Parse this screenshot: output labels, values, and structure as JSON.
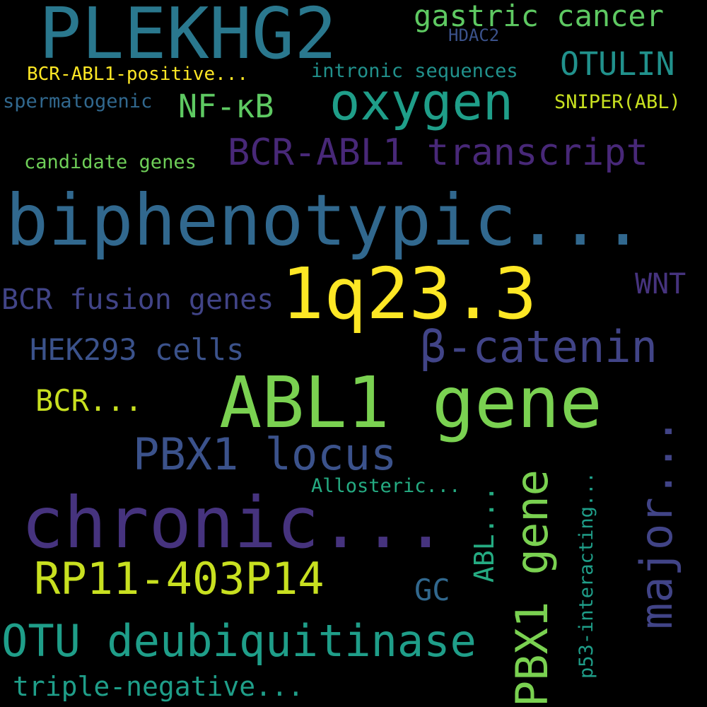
{
  "words": {
    "plekhg2": {
      "text": "PLEKHG2",
      "color": "#2a788e"
    },
    "gastric": {
      "text": "gastric cancer",
      "color": "#5ec962"
    },
    "hdac2": {
      "text": "HDAC2",
      "color": "#3b528b"
    },
    "otulin": {
      "text": "OTULIN",
      "color": "#21918c"
    },
    "bcrabl1pos": {
      "text": "BCR-ABL1-positive...",
      "color": "#fde725"
    },
    "intronic": {
      "text": "intronic sequences",
      "color": "#21918c"
    },
    "oxygen": {
      "text": "oxygen",
      "color": "#1f9e89"
    },
    "spermato": {
      "text": "spermatogenic",
      "color": "#31688e"
    },
    "nfkb": {
      "text": "NF-κB",
      "color": "#5ec962"
    },
    "sniper": {
      "text": "SNIPER(ABL)",
      "color": "#c8e020"
    },
    "bcrabl1tr": {
      "text": "BCR-ABL1 transcript",
      "color": "#482878"
    },
    "candidate": {
      "text": "candidate genes",
      "color": "#6ece58"
    },
    "biphen": {
      "text": "biphenotypic...",
      "color": "#31688e"
    },
    "1q233": {
      "text": "1q23.3",
      "color": "#fde725"
    },
    "wnt": {
      "text": "WNT",
      "color": "#46337e"
    },
    "bcrfusion": {
      "text": "BCR fusion genes",
      "color": "#414487"
    },
    "bcatenin": {
      "text": "β-catenin",
      "color": "#414487"
    },
    "hek293": {
      "text": "HEK293 cells",
      "color": "#3b528b"
    },
    "abl1gene": {
      "text": "ABL1 gene",
      "color": "#7ad151"
    },
    "bcrdots": {
      "text": "BCR...",
      "color": "#c8e020"
    },
    "pbx1locus": {
      "text": "PBX1 locus",
      "color": "#3b528b"
    },
    "allosteric": {
      "text": "Allosteric...",
      "color": "#25ab82"
    },
    "chronic": {
      "text": "chronic...",
      "color": "#46337e"
    },
    "rp11": {
      "text": "RP11-403P14",
      "color": "#c8e020"
    },
    "gc": {
      "text": "GC",
      "color": "#31688e"
    },
    "otu": {
      "text": "OTU deubiquitinase",
      "color": "#1f9e89"
    },
    "triple": {
      "text": "triple-negative...",
      "color": "#1f9e89"
    },
    "major": {
      "text": "major...",
      "color": "#414487"
    },
    "pbx1gene": {
      "text": "PBX1 gene",
      "color": "#7ad151"
    },
    "abldots": {
      "text": "ABL...",
      "color": "#25ab82"
    },
    "p53": {
      "text": "p53-interacting...",
      "color": "#1f9e89"
    }
  }
}
